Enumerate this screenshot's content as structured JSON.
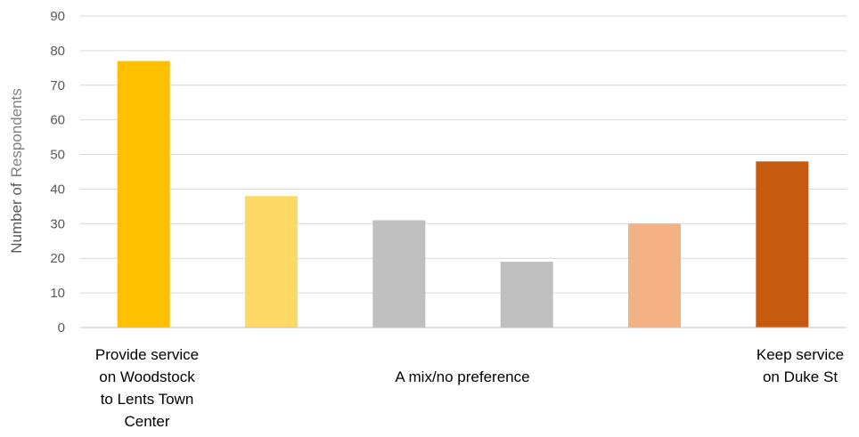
{
  "chart_data": {
    "type": "bar",
    "ylabel": "Number of Respondents",
    "ylabel_parts": [
      "Number of",
      "Respondents"
    ],
    "ylim": [
      0,
      90
    ],
    "yticks": [
      0,
      10,
      20,
      30,
      40,
      50,
      60,
      70,
      80,
      90
    ],
    "grid": true,
    "values": [
      77,
      38,
      31,
      19,
      30,
      48
    ],
    "colors": [
      "#FFC000",
      "#FFD966",
      "#BFBFBF",
      "#BFBFBF",
      "#F4B183",
      "#C55A11"
    ],
    "category_labels": [
      {
        "lines": [
          "Provide service",
          "on Woodstock",
          "to Lents Town",
          "Center"
        ]
      },
      {
        "lines": [
          "A mix/no preference"
        ]
      },
      {
        "lines": [
          "Keep service",
          "on Duke St"
        ]
      }
    ]
  }
}
